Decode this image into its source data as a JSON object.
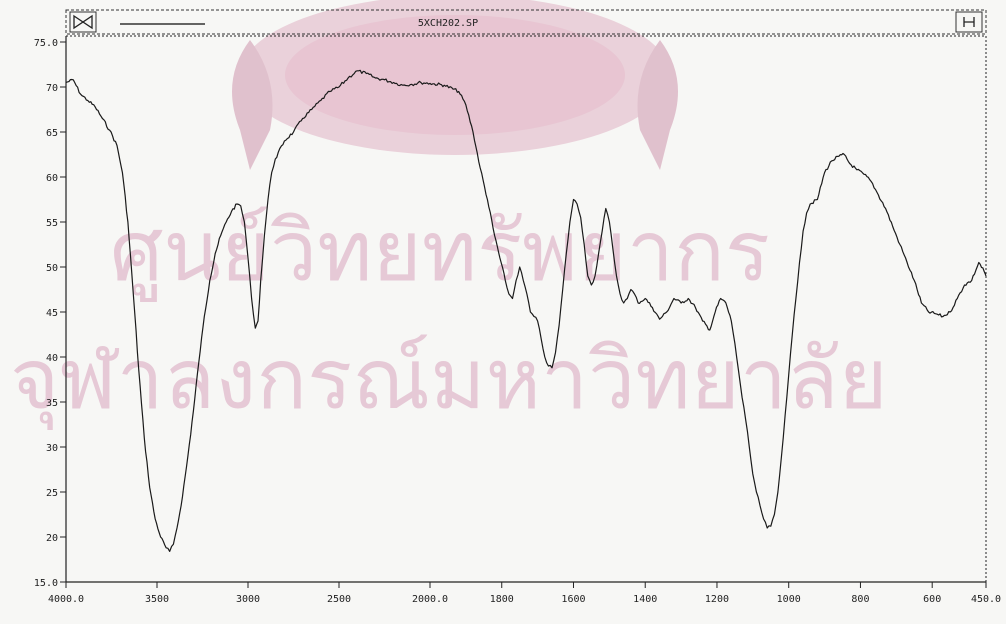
{
  "window": {
    "title": "5XCH202.SP",
    "left_button_icon": "bowtie-icon",
    "right_button_icon": "i-beam-icon"
  },
  "watermark": {
    "line1": "ศูนย์วิทยทรัพยากร",
    "line2": "จุฬาลงกรณ์มหาวิทยาลัย",
    "seal_icon": "university-seal-icon",
    "color": "#c98aa8"
  },
  "chart_data": {
    "type": "line",
    "title": "5XCH202.SP",
    "xlabel": "",
    "ylabel": "",
    "x_reversed": true,
    "xlim": [
      4000,
      450
    ],
    "ylim": [
      15,
      75
    ],
    "xticks": [
      {
        "value": 4000,
        "label": "4000.0"
      },
      {
        "value": 3500,
        "label": "3500"
      },
      {
        "value": 3000,
        "label": "3000"
      },
      {
        "value": 2500,
        "label": "2500"
      },
      {
        "value": 2000,
        "label": "2000.0"
      },
      {
        "value": 1800,
        "label": "1800"
      },
      {
        "value": 1600,
        "label": "1600"
      },
      {
        "value": 1400,
        "label": "1400"
      },
      {
        "value": 1200,
        "label": "1200"
      },
      {
        "value": 1000,
        "label": "1000"
      },
      {
        "value": 800,
        "label": "800"
      },
      {
        "value": 600,
        "label": "600"
      },
      {
        "value": 450,
        "label": "450.0"
      }
    ],
    "yticks": [
      {
        "value": 75,
        "label": "75.0"
      },
      {
        "value": 70,
        "label": "70"
      },
      {
        "value": 65,
        "label": "65"
      },
      {
        "value": 60,
        "label": "60"
      },
      {
        "value": 55,
        "label": "55"
      },
      {
        "value": 50,
        "label": "50"
      },
      {
        "value": 45,
        "label": "45"
      },
      {
        "value": 40,
        "label": "40"
      },
      {
        "value": 35,
        "label": "35"
      },
      {
        "value": 30,
        "label": "30"
      },
      {
        "value": 25,
        "label": "25"
      },
      {
        "value": 20,
        "label": "20"
      },
      {
        "value": 15,
        "label": "15.0"
      }
    ],
    "grid": false,
    "series": [
      {
        "color": "#1a1a1a",
        "points": [
          [
            4000,
            70.5
          ],
          [
            3960,
            70.8
          ],
          [
            3920,
            69.2
          ],
          [
            3880,
            68.5
          ],
          [
            3840,
            67.8
          ],
          [
            3800,
            66.5
          ],
          [
            3760,
            65.2
          ],
          [
            3720,
            63.5
          ],
          [
            3690,
            60.5
          ],
          [
            3660,
            55.0
          ],
          [
            3630,
            47.0
          ],
          [
            3600,
            38.5
          ],
          [
            3570,
            31.0
          ],
          [
            3540,
            25.5
          ],
          [
            3510,
            22.0
          ],
          [
            3480,
            20.0
          ],
          [
            3450,
            18.8
          ],
          [
            3430,
            18.4
          ],
          [
            3410,
            19.2
          ],
          [
            3390,
            21.0
          ],
          [
            3360,
            24.5
          ],
          [
            3330,
            29.0
          ],
          [
            3300,
            34.0
          ],
          [
            3270,
            39.5
          ],
          [
            3240,
            44.5
          ],
          [
            3210,
            48.5
          ],
          [
            3180,
            51.5
          ],
          [
            3150,
            53.5
          ],
          [
            3120,
            55.0
          ],
          [
            3090,
            56.2
          ],
          [
            3060,
            57.0
          ],
          [
            3040,
            56.8
          ],
          [
            3020,
            55.0
          ],
          [
            3000,
            51.0
          ],
          [
            2980,
            46.5
          ],
          [
            2960,
            43.2
          ],
          [
            2945,
            44.0
          ],
          [
            2930,
            48.5
          ],
          [
            2910,
            53.5
          ],
          [
            2890,
            57.5
          ],
          [
            2870,
            60.5
          ],
          [
            2850,
            62.0
          ],
          [
            2800,
            64.0
          ],
          [
            2750,
            65.0
          ],
          [
            2700,
            66.5
          ],
          [
            2650,
            67.5
          ],
          [
            2600,
            68.5
          ],
          [
            2550,
            69.5
          ],
          [
            2500,
            70.0
          ],
          [
            2450,
            71.0
          ],
          [
            2400,
            71.8
          ],
          [
            2350,
            71.5
          ],
          [
            2300,
            71.0
          ],
          [
            2250,
            70.8
          ],
          [
            2200,
            70.5
          ],
          [
            2150,
            70.2
          ],
          [
            2100,
            70.3
          ],
          [
            2050,
            70.5
          ],
          [
            2000,
            70.4
          ],
          [
            1960,
            70.2
          ],
          [
            1920,
            69.5
          ],
          [
            1900,
            68.0
          ],
          [
            1880,
            65.0
          ],
          [
            1860,
            61.0
          ],
          [
            1840,
            57.5
          ],
          [
            1820,
            53.5
          ],
          [
            1805,
            51.0
          ],
          [
            1790,
            48.5
          ],
          [
            1780,
            47.0
          ],
          [
            1770,
            46.5
          ],
          [
            1760,
            48.5
          ],
          [
            1750,
            50.0
          ],
          [
            1740,
            48.5
          ],
          [
            1730,
            47.0
          ],
          [
            1720,
            45.0
          ],
          [
            1710,
            44.5
          ],
          [
            1700,
            44.0
          ],
          [
            1690,
            42.0
          ],
          [
            1680,
            40.0
          ],
          [
            1670,
            39.0
          ],
          [
            1660,
            38.8
          ],
          [
            1650,
            40.5
          ],
          [
            1640,
            43.5
          ],
          [
            1630,
            47.5
          ],
          [
            1620,
            51.5
          ],
          [
            1610,
            55.0
          ],
          [
            1600,
            57.5
          ],
          [
            1590,
            57.0
          ],
          [
            1580,
            55.5
          ],
          [
            1570,
            52.5
          ],
          [
            1560,
            49.0
          ],
          [
            1550,
            48.0
          ],
          [
            1540,
            49.0
          ],
          [
            1530,
            51.5
          ],
          [
            1520,
            54.0
          ],
          [
            1510,
            56.5
          ],
          [
            1500,
            55.0
          ],
          [
            1490,
            52.0
          ],
          [
            1480,
            49.0
          ],
          [
            1470,
            47.0
          ],
          [
            1460,
            46.0
          ],
          [
            1450,
            46.5
          ],
          [
            1440,
            47.5
          ],
          [
            1430,
            47.0
          ],
          [
            1420,
            46.0
          ],
          [
            1400,
            46.5
          ],
          [
            1380,
            45.5
          ],
          [
            1360,
            44.2
          ],
          [
            1340,
            45.0
          ],
          [
            1320,
            46.5
          ],
          [
            1300,
            46.0
          ],
          [
            1280,
            46.5
          ],
          [
            1260,
            45.5
          ],
          [
            1240,
            44.0
          ],
          [
            1220,
            43.0
          ],
          [
            1205,
            45.0
          ],
          [
            1190,
            46.5
          ],
          [
            1175,
            46.0
          ],
          [
            1160,
            44.0
          ],
          [
            1150,
            41.5
          ],
          [
            1140,
            38.5
          ],
          [
            1130,
            35.5
          ],
          [
            1120,
            33.0
          ],
          [
            1110,
            30.0
          ],
          [
            1100,
            27.0
          ],
          [
            1090,
            25.0
          ],
          [
            1080,
            23.5
          ],
          [
            1070,
            22.0
          ],
          [
            1060,
            21.0
          ],
          [
            1050,
            21.2
          ],
          [
            1040,
            22.5
          ],
          [
            1030,
            25.0
          ],
          [
            1020,
            29.0
          ],
          [
            1010,
            33.5
          ],
          [
            1000,
            38.0
          ],
          [
            990,
            42.5
          ],
          [
            980,
            46.5
          ],
          [
            970,
            50.5
          ],
          [
            960,
            54.0
          ],
          [
            950,
            56.0
          ],
          [
            940,
            57.0
          ],
          [
            920,
            57.5
          ],
          [
            900,
            60.5
          ],
          [
            880,
            61.8
          ],
          [
            860,
            62.3
          ],
          [
            845,
            62.5
          ],
          [
            830,
            61.5
          ],
          [
            810,
            60.8
          ],
          [
            790,
            60.3
          ],
          [
            770,
            59.5
          ],
          [
            750,
            58.0
          ],
          [
            730,
            56.5
          ],
          [
            710,
            54.5
          ],
          [
            690,
            52.5
          ],
          [
            670,
            50.5
          ],
          [
            650,
            48.5
          ],
          [
            630,
            46.0
          ],
          [
            610,
            45.0
          ],
          [
            590,
            44.8
          ],
          [
            570,
            44.5
          ],
          [
            550,
            45.0
          ],
          [
            530,
            46.5
          ],
          [
            510,
            48.0
          ],
          [
            490,
            48.5
          ],
          [
            470,
            50.5
          ],
          [
            455,
            49.5
          ],
          [
            450,
            49.0
          ]
        ]
      }
    ]
  }
}
